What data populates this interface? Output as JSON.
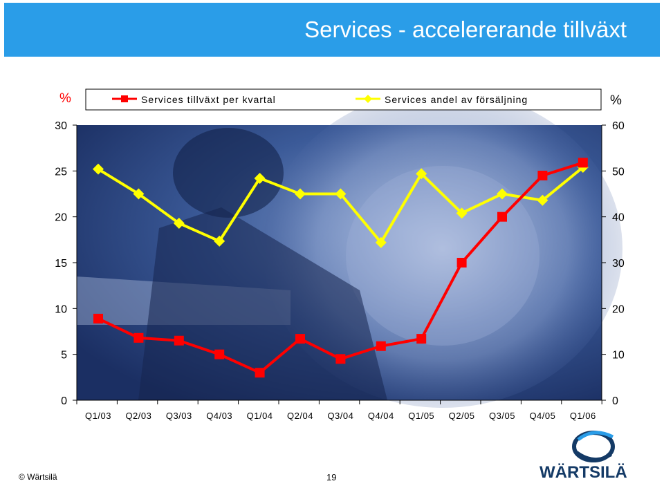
{
  "slide": {
    "title": "Services - accelererande tillväxt",
    "footer_copyright": "© Wärtsilä",
    "page_number": "19",
    "logo_text": "WÄRTSILÄ"
  },
  "colors": {
    "header": "#2a9de8",
    "growth_series": "#ff0000",
    "share_series": "#ffff00",
    "logo": "#143a66"
  },
  "chart_data": {
    "type": "line",
    "categories": [
      "Q1/03",
      "Q2/03",
      "Q3/03",
      "Q4/03",
      "Q1/04",
      "Q2/04",
      "Q3/04",
      "Q4/04",
      "Q1/05",
      "Q2/05",
      "Q3/05",
      "Q4/05",
      "Q1/06"
    ],
    "left_unit": "%",
    "right_unit": "%",
    "y_left": {
      "min": 0,
      "max": 30,
      "ticks": [
        0,
        5,
        10,
        15,
        20,
        25,
        30
      ]
    },
    "y_right": {
      "min": 0,
      "max": 60,
      "ticks": [
        0,
        10,
        20,
        30,
        40,
        50,
        60
      ]
    },
    "series": [
      {
        "name": "Services tillväxt per kvartal",
        "axis": "left",
        "color": "#ff0000",
        "marker": "square",
        "values": [
          8.9,
          6.8,
          6.5,
          5.0,
          3.0,
          6.7,
          4.5,
          5.9,
          6.7,
          15.0,
          20.0,
          24.5,
          25.9
        ]
      },
      {
        "name": "Services andel av försäljning",
        "axis": "right",
        "color": "#ffff00",
        "marker": "diamond",
        "values": [
          50.4,
          45.0,
          38.6,
          34.7,
          48.4,
          45.0,
          45.0,
          34.4,
          49.4,
          40.8,
          45.0,
          43.6,
          50.8
        ]
      }
    ],
    "legend": "top",
    "grid": false
  }
}
